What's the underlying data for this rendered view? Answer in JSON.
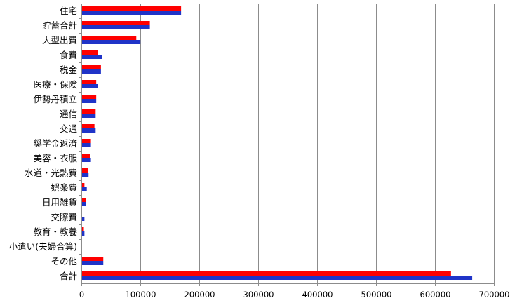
{
  "chart_data": {
    "type": "bar",
    "orientation": "horizontal",
    "categories": [
      "住宅",
      "貯蓄合計",
      "大型出費",
      "食費",
      "税金",
      "医療・保険",
      "伊勢丹積立",
      "通信",
      "交通",
      "奨学金返済",
      "美容・衣服",
      "水道・光熱費",
      "娯楽費",
      "日用雑貨",
      "交際費",
      "教育・教養",
      "小遣い(夫婦合算)",
      "その他",
      "合計"
    ],
    "series": [
      {
        "color": "#ff0000",
        "values": [
          168000,
          115000,
          92000,
          27000,
          32000,
          24000,
          24000,
          23000,
          21000,
          15000,
          14000,
          10000,
          4000,
          7000,
          0,
          3000,
          0,
          36000,
          626000
        ]
      },
      {
        "color": "#1f34c8",
        "values": [
          168000,
          115000,
          99000,
          34000,
          32000,
          27000,
          24000,
          23000,
          23000,
          15000,
          15000,
          11000,
          8000,
          7000,
          4000,
          4000,
          0,
          36000,
          662000
        ]
      }
    ],
    "xlim": [
      0,
      700000
    ],
    "ticks": [
      "0",
      "100000",
      "200000",
      "300000",
      "400000",
      "500000",
      "600000",
      "700000"
    ],
    "grid": "vertical",
    "legend": "none"
  }
}
